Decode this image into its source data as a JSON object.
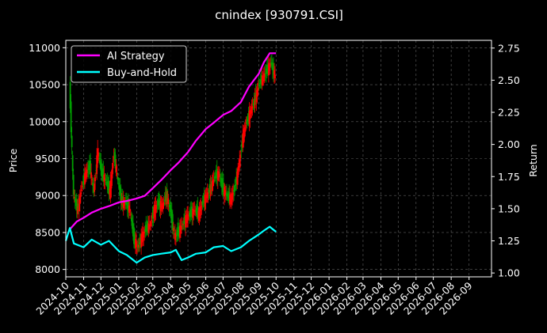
{
  "chart_data": {
    "type": "line",
    "title": "cnindex [930791.CSI]",
    "ylabel_left": "Price",
    "ylabel_right": "Return",
    "ylim_left": [
      7900,
      11100
    ],
    "ylim_right": [
      0.97,
      2.81
    ],
    "xlim": [
      "2024-10-01",
      "2026-10-10"
    ],
    "y_ticks_left": [
      8000,
      8500,
      9000,
      9500,
      10000,
      10500,
      11000
    ],
    "y_ticks_right": [
      "1.00",
      "1.25",
      "1.50",
      "1.75",
      "2.00",
      "2.25",
      "2.50",
      "2.75"
    ],
    "x_ticks": [
      "2024-10",
      "2024-11",
      "2024-12",
      "2025-01",
      "2025-02",
      "2025-03",
      "2025-04",
      "2025-05",
      "2025-06",
      "2025-07",
      "2025-08",
      "2025-09",
      "2025-10",
      "2025-11",
      "2025-12",
      "2026-01",
      "2026-02",
      "2026-03",
      "2026-04",
      "2026-05",
      "2026-06",
      "2026-07",
      "2026-08",
      "2026-09"
    ],
    "grid": true,
    "legend_position": "top-left",
    "price_series": {
      "name": "",
      "kind": "candlestick",
      "up_color": "#ff0000",
      "down_color": "#00a000",
      "dates": [
        "2024-10-08",
        "2024-10-15",
        "2024-10-22",
        "2024-10-29",
        "2024-11-05",
        "2024-11-12",
        "2024-11-19",
        "2024-11-26",
        "2024-12-03",
        "2024-12-10",
        "2024-12-17",
        "2024-12-24",
        "2024-12-31",
        "2025-01-07",
        "2025-01-14",
        "2025-01-21",
        "2025-01-28",
        "2025-02-04",
        "2025-02-11",
        "2025-02-18",
        "2025-02-25",
        "2025-03-04",
        "2025-03-11",
        "2025-03-18",
        "2025-03-25",
        "2025-04-01",
        "2025-04-08",
        "2025-04-15",
        "2025-04-22",
        "2025-04-29",
        "2025-05-06",
        "2025-05-13",
        "2025-05-20",
        "2025-05-27",
        "2025-06-03",
        "2025-06-10",
        "2025-06-17",
        "2025-06-24",
        "2025-07-01",
        "2025-07-08",
        "2025-07-15",
        "2025-07-22",
        "2025-07-29",
        "2025-08-05",
        "2025-08-12",
        "2025-08-19",
        "2025-08-26",
        "2025-09-02",
        "2025-09-09",
        "2025-09-16",
        "2025-09-23",
        "2025-09-30"
      ],
      "values": [
        10500,
        9000,
        8800,
        9100,
        9300,
        9400,
        9050,
        9600,
        9300,
        9200,
        9050,
        9550,
        9200,
        8900,
        8900,
        8800,
        8400,
        8300,
        8450,
        8550,
        8600,
        8800,
        8900,
        8850,
        9000,
        8800,
        8450,
        8500,
        8600,
        8700,
        8750,
        8800,
        8750,
        8900,
        9000,
        9100,
        9250,
        9300,
        9100,
        9000,
        8950,
        9100,
        9400,
        9800,
        10000,
        10150,
        10300,
        10500,
        10600,
        10700,
        10800,
        10600
      ]
    },
    "series": [
      {
        "name": "AI Strategy",
        "color": "#ff00ff",
        "dates": [
          "2024-10-08",
          "2024-10-20",
          "2024-11-01",
          "2024-11-15",
          "2024-12-01",
          "2024-12-15",
          "2025-01-01",
          "2025-01-15",
          "2025-02-01",
          "2025-02-15",
          "2025-03-01",
          "2025-03-15",
          "2025-04-01",
          "2025-04-15",
          "2025-05-01",
          "2025-05-15",
          "2025-06-01",
          "2025-06-15",
          "2025-07-01",
          "2025-07-15",
          "2025-08-01",
          "2025-08-15",
          "2025-09-01",
          "2025-09-10",
          "2025-09-20",
          "2025-10-01"
        ],
        "values": [
          1.34,
          1.4,
          1.43,
          1.47,
          1.5,
          1.52,
          1.55,
          1.56,
          1.58,
          1.6,
          1.66,
          1.72,
          1.8,
          1.86,
          1.94,
          2.03,
          2.12,
          2.17,
          2.23,
          2.26,
          2.33,
          2.45,
          2.55,
          2.64,
          2.71,
          2.71
        ]
      },
      {
        "name": "Buy-and-Hold",
        "color": "#00ffff",
        "dates": [
          "2024-10-01",
          "2024-10-08",
          "2024-10-15",
          "2024-11-01",
          "2024-11-15",
          "2024-12-01",
          "2024-12-15",
          "2025-01-01",
          "2025-01-15",
          "2025-02-01",
          "2025-02-15",
          "2025-03-01",
          "2025-03-15",
          "2025-04-01",
          "2025-04-10",
          "2025-04-20",
          "2025-05-01",
          "2025-05-15",
          "2025-06-01",
          "2025-06-15",
          "2025-07-01",
          "2025-07-15",
          "2025-08-01",
          "2025-08-15",
          "2025-09-01",
          "2025-09-10",
          "2025-09-20",
          "2025-10-01"
        ],
        "values": [
          1.25,
          1.35,
          1.23,
          1.2,
          1.26,
          1.22,
          1.25,
          1.17,
          1.14,
          1.08,
          1.12,
          1.14,
          1.15,
          1.16,
          1.18,
          1.1,
          1.12,
          1.15,
          1.16,
          1.2,
          1.21,
          1.17,
          1.2,
          1.25,
          1.3,
          1.33,
          1.36,
          1.32
        ]
      }
    ]
  }
}
